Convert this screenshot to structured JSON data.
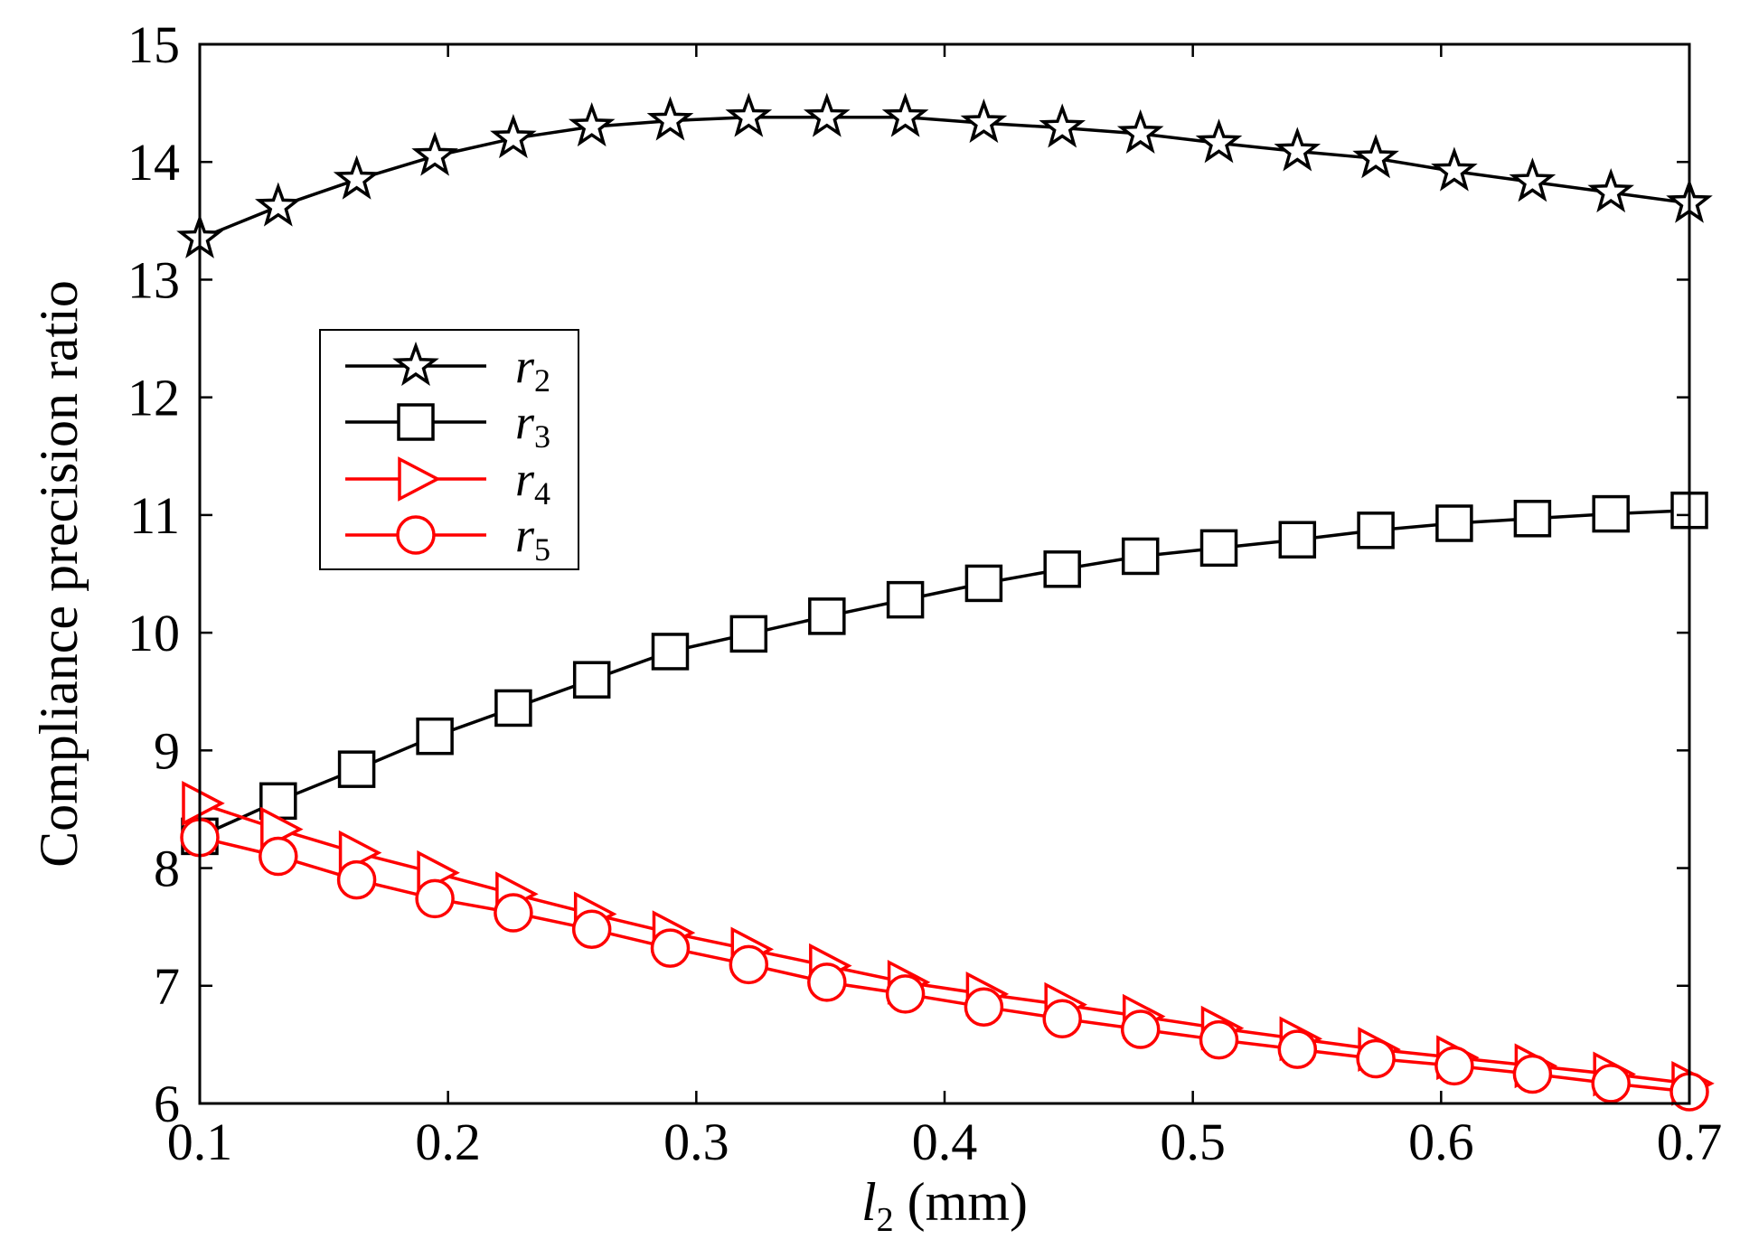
{
  "chart_data": {
    "type": "line",
    "title": "",
    "xlabel": {
      "var": "l",
      "sub": "2",
      "unit": " (mm)"
    },
    "ylabel": "Compliance precision ratio",
    "xlim": [
      0.1,
      0.7
    ],
    "ylim": [
      6,
      15
    ],
    "xticks": [
      "0.1",
      "0.2",
      "0.3",
      "0.4",
      "0.5",
      "0.6",
      "0.7"
    ],
    "yticks": [
      "6",
      "7",
      "8",
      "9",
      "10",
      "11",
      "12",
      "13",
      "14",
      "15"
    ],
    "grid": false,
    "legend_position": "left-middle",
    "x": [
      0.1,
      0.1316,
      0.1632,
      0.1947,
      0.2263,
      0.2579,
      0.2895,
      0.3211,
      0.3526,
      0.3842,
      0.4158,
      0.4474,
      0.4789,
      0.5105,
      0.5421,
      0.5737,
      0.6053,
      0.6368,
      0.6684,
      0.7
    ],
    "series": [
      {
        "name": "r2",
        "label": "r",
        "sub": "2",
        "color": "#000000",
        "marker": "star",
        "values": [
          13.35,
          13.62,
          13.85,
          14.05,
          14.2,
          14.3,
          14.35,
          14.38,
          14.38,
          14.38,
          14.33,
          14.29,
          14.24,
          14.16,
          14.09,
          14.03,
          13.92,
          13.83,
          13.74,
          13.65
        ]
      },
      {
        "name": "r3",
        "label": "r",
        "sub": "3",
        "color": "#000000",
        "marker": "square",
        "values": [
          8.27,
          8.57,
          8.84,
          9.12,
          9.36,
          9.6,
          9.84,
          9.99,
          10.14,
          10.28,
          10.42,
          10.54,
          10.65,
          10.72,
          10.79,
          10.87,
          10.93,
          10.97,
          11.01,
          11.04
        ]
      },
      {
        "name": "r4",
        "label": "r",
        "sub": "4",
        "color": "#ff0000",
        "marker": "triangle-right",
        "values": [
          8.55,
          8.33,
          8.13,
          7.96,
          7.78,
          7.61,
          7.45,
          7.31,
          7.17,
          7.03,
          6.93,
          6.84,
          6.74,
          6.64,
          6.55,
          6.46,
          6.39,
          6.32,
          6.25,
          6.17
        ]
      },
      {
        "name": "r5",
        "label": "r",
        "sub": "5",
        "color": "#ff0000",
        "marker": "circle",
        "values": [
          8.26,
          8.1,
          7.9,
          7.74,
          7.62,
          7.48,
          7.32,
          7.18,
          7.03,
          6.93,
          6.82,
          6.72,
          6.63,
          6.54,
          6.46,
          6.38,
          6.32,
          6.25,
          6.17,
          6.1
        ]
      }
    ]
  }
}
